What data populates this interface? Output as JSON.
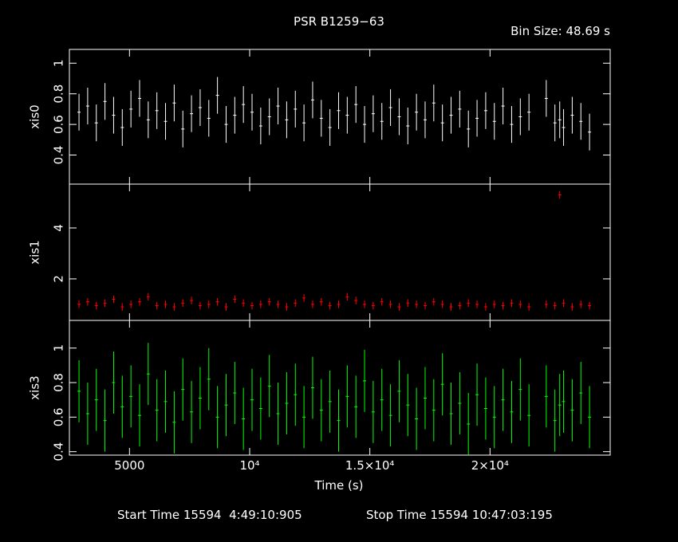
{
  "chart_data": {
    "type": "errorbar",
    "title": "PSR B1259−63",
    "subtitle": "Bin Size: 48.69 s",
    "xlabel": "Time (s)",
    "xlim": [
      2500,
      25000
    ],
    "xticks": [
      5000,
      {
        "value": 10000,
        "label": "10⁴"
      },
      {
        "value": 15000,
        "label": "1.5×10⁴"
      },
      {
        "value": 20000,
        "label": "2×10⁴"
      }
    ],
    "x": [
      2900,
      3260,
      3620,
      3980,
      4340,
      4700,
      5060,
      5420,
      5780,
      6140,
      6500,
      6860,
      7220,
      7580,
      7940,
      8300,
      8660,
      9020,
      9380,
      9740,
      10100,
      10460,
      10820,
      11180,
      11540,
      11900,
      12260,
      12620,
      12980,
      13340,
      13700,
      14060,
      14420,
      14780,
      15140,
      15500,
      15860,
      16220,
      16580,
      16940,
      17300,
      17660,
      18020,
      18380,
      18740,
      19100,
      19460,
      19820,
      20180,
      20540,
      20900,
      21260,
      21620,
      22900,
      22340,
      22700,
      23060,
      23420,
      23780,
      24140
    ],
    "panels": [
      {
        "ylabel": "xis0",
        "color": "#ffffff",
        "error": 0.12,
        "ylim": [
          0.21,
          1.09
        ],
        "yticks": [
          0.4,
          0.6,
          0.8,
          1
        ],
        "values": [
          0.68,
          0.72,
          0.61,
          0.75,
          0.66,
          0.58,
          0.7,
          0.77,
          0.63,
          0.69,
          0.62,
          0.74,
          0.57,
          0.67,
          0.71,
          0.64,
          0.79,
          0.6,
          0.66,
          0.73,
          0.68,
          0.59,
          0.65,
          0.72,
          0.63,
          0.7,
          0.61,
          0.76,
          0.64,
          0.58,
          0.69,
          0.66,
          0.73,
          0.6,
          0.67,
          0.62,
          0.71,
          0.65,
          0.59,
          0.68,
          0.63,
          0.74,
          0.61,
          0.66,
          0.7,
          0.57,
          0.64,
          0.69,
          0.62,
          0.72,
          0.6,
          0.65,
          0.68,
          0.63,
          0.77,
          0.61,
          0.58,
          0.66,
          0.62,
          0.55
        ]
      },
      {
        "ylabel": "xis1",
        "color": "#ff0000",
        "error": 0.15,
        "ylim": [
          0.37,
          5.72
        ],
        "yticks": [
          2,
          4
        ],
        "values": [
          1.0,
          1.1,
          0.95,
          1.05,
          1.2,
          0.9,
          1.0,
          1.1,
          1.3,
          0.95,
          1.0,
          0.9,
          1.05,
          1.15,
          0.95,
          1.0,
          1.1,
          0.9,
          1.2,
          1.05,
          0.95,
          1.0,
          1.1,
          1.0,
          0.9,
          1.05,
          1.25,
          1.0,
          1.1,
          0.95,
          1.0,
          1.3,
          1.15,
          1.0,
          0.95,
          1.1,
          1.0,
          0.9,
          1.05,
          1.0,
          0.95,
          1.1,
          1.0,
          0.9,
          0.95,
          1.05,
          1.0,
          0.9,
          1.0,
          0.95,
          1.05,
          1.0,
          0.9,
          5.3,
          1.0,
          0.95,
          1.05,
          0.9,
          1.0,
          0.95
        ]
      },
      {
        "ylabel": "xis3",
        "color": "#00ff00",
        "error": 0.18,
        "ylim": [
          0.38,
          1.16
        ],
        "yticks": [
          0.4,
          0.6,
          0.8,
          1
        ],
        "values": [
          0.75,
          0.62,
          0.7,
          0.58,
          0.8,
          0.66,
          0.72,
          0.61,
          0.85,
          0.64,
          0.69,
          0.57,
          0.76,
          0.63,
          0.71,
          0.82,
          0.6,
          0.67,
          0.74,
          0.59,
          0.7,
          0.65,
          0.78,
          0.62,
          0.68,
          0.73,
          0.6,
          0.77,
          0.64,
          0.69,
          0.58,
          0.72,
          0.66,
          0.81,
          0.63,
          0.7,
          0.61,
          0.75,
          0.67,
          0.59,
          0.71,
          0.64,
          0.79,
          0.62,
          0.68,
          0.56,
          0.73,
          0.65,
          0.6,
          0.7,
          0.63,
          0.76,
          0.61,
          0.67,
          0.72,
          0.58,
          0.69,
          0.64,
          0.74,
          0.6
        ]
      }
    ]
  },
  "footer": {
    "start": "Start Time 15594  4:49:10:905",
    "stop": "Stop Time 15594 10:47:03:195"
  }
}
